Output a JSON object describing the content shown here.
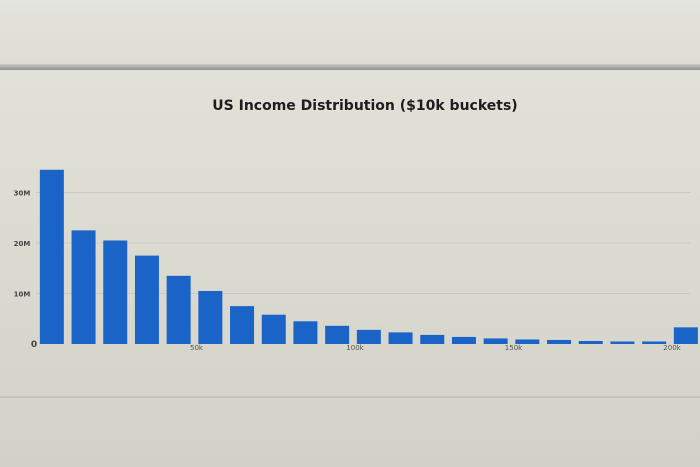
{
  "chart_data": {
    "type": "bar",
    "title": "US Income Distribution ($10k buckets)",
    "xlabel": "",
    "ylabel": "",
    "ylim": [
      0,
      40
    ],
    "y_ticks": [
      {
        "value": 0,
        "label": "0"
      },
      {
        "value": 10,
        "label": "10M"
      },
      {
        "value": 20,
        "label": "20M"
      },
      {
        "value": 30,
        "label": "30M"
      }
    ],
    "x_ticks": [
      {
        "value": 50,
        "label": "50k"
      },
      {
        "value": 100,
        "label": "100k"
      },
      {
        "value": 150,
        "label": "150k"
      },
      {
        "value": 200,
        "label": "200k"
      }
    ],
    "x_unit": "thousands of dollars (bucket start)",
    "buckets": [
      0,
      10,
      20,
      30,
      40,
      50,
      60,
      70,
      80,
      90,
      100,
      110,
      120,
      130,
      140,
      150,
      160,
      170,
      180,
      190,
      200
    ],
    "values": [
      34.5,
      22.5,
      20.5,
      17.5,
      13.5,
      10.5,
      7.5,
      5.8,
      4.5,
      3.6,
      2.8,
      2.3,
      1.8,
      1.4,
      1.1,
      0.9,
      0.8,
      0.6,
      0.5,
      0.5,
      3.3
    ],
    "bar_color": "#1a64c8",
    "grid": true
  }
}
